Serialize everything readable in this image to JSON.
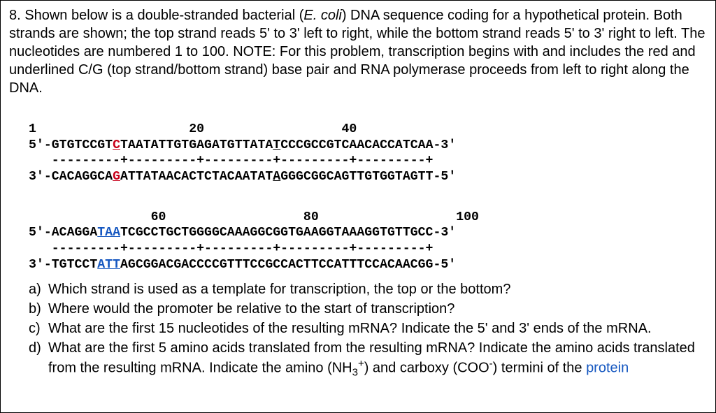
{
  "problem": {
    "number": "8.",
    "intro_parts": {
      "p1": "Shown below is a double-stranded bacterial (",
      "organism": "E. coli",
      "p2": ") DNA sequence coding for a hypothetical protein. Both strands are shown; the top strand reads 5' to 3' left to right, while the bottom strand reads 5' to 3' right to left. The nucleotides are numbered 1 to 100. NOTE: For this problem, transcription begins with and includes the red and underlined C/G (top strand/bottom strand) base pair and RNA polymerase proceeds from left to right along the DNA."
    }
  },
  "seq1": {
    "ruler": "1                    20                  40",
    "top_a": "5'-GTGTCCGT",
    "top_c": "C",
    "top_b": "TAATATTGTGAGATGTTATA",
    "top_t": "T",
    "top_c2": "CCCGCCGTCAA",
    "top_bold": "C",
    "top_d": "ACCATCAA-3'",
    "ticks": "   ---------+---------+---------+---------+---------+",
    "bot_a": "3'-CACAGGCA",
    "bot_g": "G",
    "bot_b": "ATTATAACACTCTACAATAT",
    "bot_a2": "A",
    "bot_c": "GGGCGGCAGTT",
    "bot_bold": "G",
    "bot_d": "TGGTAGTT-5'"
  },
  "seq2": {
    "ruler": "                60                  80                  100",
    "top_a": "5'-ACAGGA",
    "top_taa": "TAA",
    "top_b": "TCGCCTGCTGGGGCAAAGGCGGTGAAGGTAAAGGTGTTGCC-3'",
    "ticks": "   ---------+---------+---------+---------+---------+",
    "bot_a": "3'-TGTCCT",
    "bot_att": "ATT",
    "bot_b": "AGCGGACGACCCCGTTTCCGCCACTTCCATTTCCACAACGG-5'"
  },
  "q": {
    "a_lab": "a)",
    "a": "Which strand is used as a template for transcription, the top or the bottom?",
    "b_lab": "b)",
    "b": "Where would the promoter be relative to the start of transcription?",
    "c_lab": "c)",
    "c": "What are the first 15 nucleotides of the resulting mRNA? Indicate the 5' and 3' ends of the mRNA.",
    "d_lab": "d)",
    "d_p1": "What are the first 5 amino acids translated from the resulting mRNA? Indicate the amino acids translated from the resulting mRNA. Indicate the amino (NH",
    "d_sub": "3",
    "d_sup": "+",
    "d_p2": ") and carboxy (COO",
    "d_sup2": "-",
    "d_p3": ") termini of the ",
    "d_protein": "protein"
  }
}
